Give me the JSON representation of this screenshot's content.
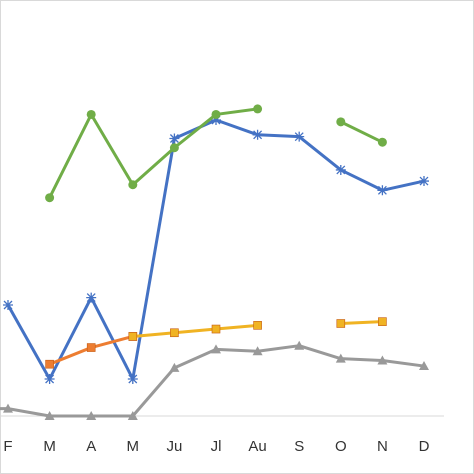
{
  "chart_data": {
    "type": "line",
    "categories": [
      "F",
      "M",
      "A",
      "M",
      "Ju",
      "Jl",
      "Au",
      "S",
      "O",
      "N",
      "D"
    ],
    "ylim": [
      0,
      100
    ],
    "grid": false,
    "legend": "none",
    "series": [
      {
        "color": "#4472c4",
        "marker": "star",
        "values": [
          30,
          10,
          32,
          10,
          75,
          80,
          76,
          75.5,
          66.5,
          61,
          63.5
        ]
      },
      {
        "color": "#70ad47",
        "marker": "circle",
        "values": [
          null,
          59,
          81.5,
          62.5,
          72.5,
          81.5,
          83,
          null,
          79.5,
          74,
          null
        ]
      },
      {
        "color": "#ed7d31",
        "marker": "square",
        "values": [
          null,
          14,
          18.5,
          21.5,
          null,
          null,
          null,
          null,
          null,
          null,
          null
        ]
      },
      {
        "color": "#f0b323",
        "marker": "square",
        "values": [
          null,
          null,
          null,
          21.5,
          22.5,
          23.5,
          24.5,
          null,
          25,
          25.5,
          null
        ]
      },
      {
        "color": "#999999",
        "marker": "triangle",
        "values": [
          2,
          0,
          0,
          0,
          13,
          18,
          17.5,
          19,
          15.5,
          15,
          13.5
        ]
      }
    ],
    "leading_values": [
      null,
      30,
      null,
      null,
      2
    ]
  }
}
